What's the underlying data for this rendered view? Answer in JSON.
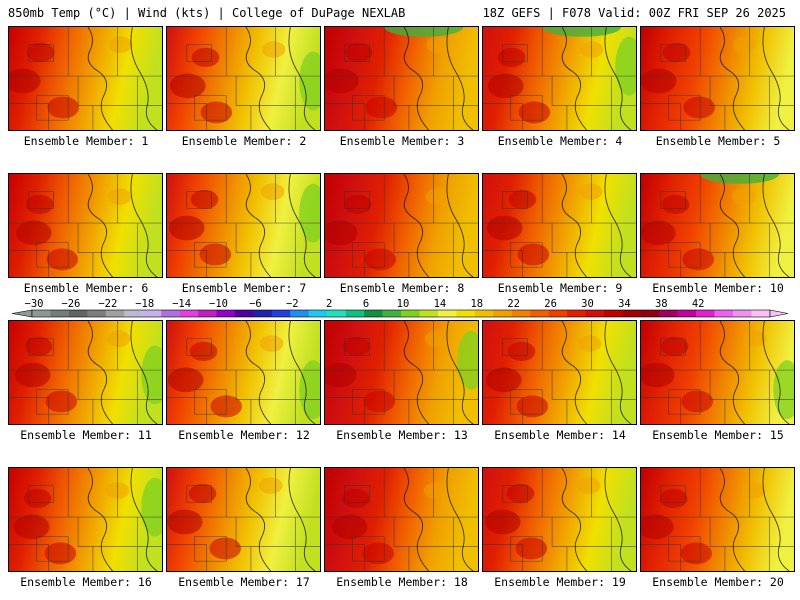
{
  "header": {
    "left_title": "850mb Temp (°C) | Wind (kts) | College of DuPage NEXLAB",
    "right_title": "18Z GEFS | F078 Valid: 00Z FRI SEP 26 2025"
  },
  "colorbar": {
    "tick_labels": [
      "−30",
      "−26",
      "−22",
      "−18",
      "−14",
      "−10",
      "−6",
      "−2",
      "2",
      "6",
      "10",
      "14",
      "18",
      "22",
      "26",
      "30",
      "34",
      "38",
      "42"
    ],
    "colors": [
      "#8c9a94",
      "#757e7a",
      "#5e6764",
      "#7d7d7d",
      "#a0a0a0",
      "#b9b9cf",
      "#c8b0e8",
      "#b070e0",
      "#e040e0",
      "#c020c0",
      "#9000c8",
      "#5000a0",
      "#2020b0",
      "#2040e0",
      "#2090f0",
      "#20c8f0",
      "#20e0c0",
      "#10c080",
      "#109040",
      "#40b040",
      "#80d020",
      "#c0e020",
      "#f0f040",
      "#f0e000",
      "#f0c000",
      "#f0a000",
      "#f08000",
      "#f06000",
      "#f04000",
      "#e02000",
      "#d01010",
      "#c00000",
      "#a00000",
      "#900010",
      "#a00060",
      "#c000a0",
      "#e020d0",
      "#f060f0",
      "#f090f0",
      "#f8c0f8"
    ]
  },
  "members": [
    {
      "label": "Ensemble Member: 1"
    },
    {
      "label": "Ensemble Member: 2"
    },
    {
      "label": "Ensemble Member: 3"
    },
    {
      "label": "Ensemble Member: 4"
    },
    {
      "label": "Ensemble Member: 5"
    },
    {
      "label": "Ensemble Member: 6"
    },
    {
      "label": "Ensemble Member: 7"
    },
    {
      "label": "Ensemble Member: 8"
    },
    {
      "label": "Ensemble Member: 9"
    },
    {
      "label": "Ensemble Member: 10"
    },
    {
      "label": "Ensemble Member: 11"
    },
    {
      "label": "Ensemble Member: 12"
    },
    {
      "label": "Ensemble Member: 13"
    },
    {
      "label": "Ensemble Member: 14"
    },
    {
      "label": "Ensemble Member: 15"
    },
    {
      "label": "Ensemble Member: 16"
    },
    {
      "label": "Ensemble Member: 17"
    },
    {
      "label": "Ensemble Member: 18"
    },
    {
      "label": "Ensemble Member: 19"
    },
    {
      "label": "Ensemble Member: 20"
    }
  ]
}
